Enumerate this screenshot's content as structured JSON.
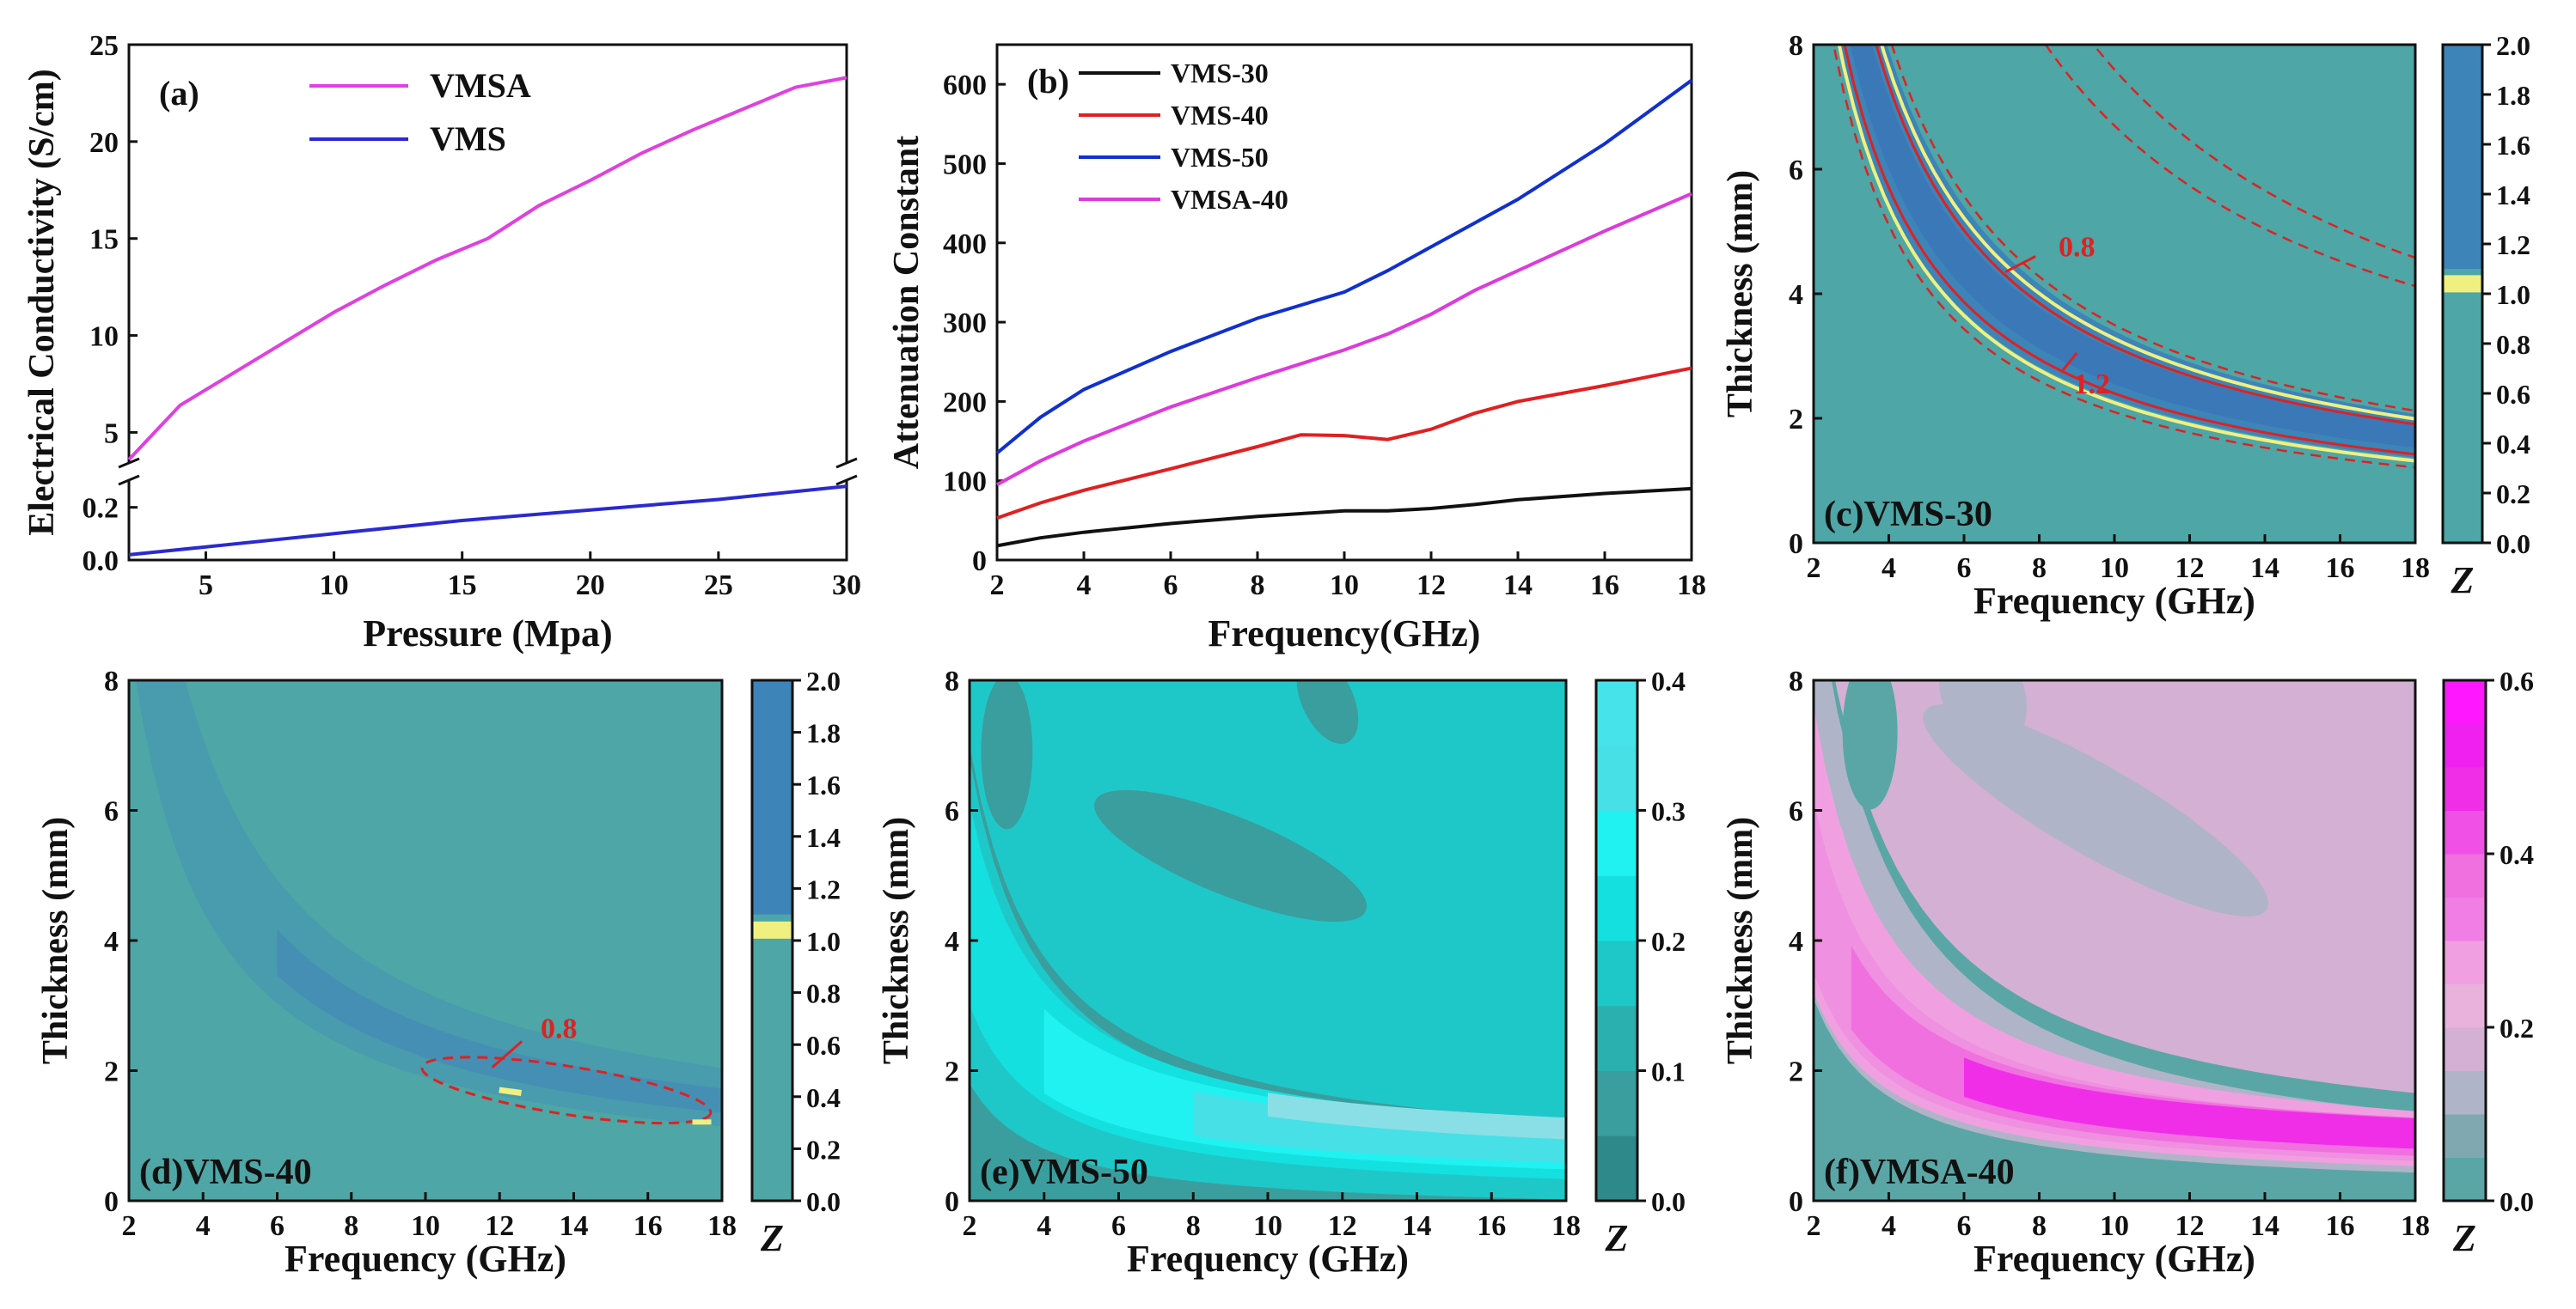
{
  "colors": {
    "vmsa": "#e040e0",
    "vms": "#2a2ad0",
    "vms30": "#111111",
    "vms40": "#e02020",
    "vms50": "#1030d0",
    "vmsa40": "#dd3add",
    "contour_red": "#dd2222",
    "yellow": "#f0f080",
    "z_bg": "#4ea6a6",
    "z_band": "#3d84b8",
    "cyan_bg": "#1fc8c8",
    "cyan_mid": "#15e0e0",
    "cyan_hi": "#20f2f2",
    "cyan_top": "#46e0e6",
    "cyan_dark": "#3a9e9e",
    "cyan_deep": "#2e8a8a",
    "pink_bg": "#d4b0d4",
    "pink_grey": "#b0b4c8",
    "pink_light": "#f0a0e0",
    "pink_mid": "#f070e0",
    "pink_hot": "#f02ee8",
    "pink_teal": "#5aa6a6"
  },
  "chart_data": [
    {
      "id": "a",
      "type": "line",
      "panel_label": "(a)",
      "xlabel": "Pressure (Mpa)",
      "ylabel": "Electrical Conductivity (S/cm)",
      "xlim": [
        2,
        30
      ],
      "xticks": [
        "5",
        "10",
        "15",
        "20",
        "25",
        "30"
      ],
      "yticks_upper": [
        "5",
        "10",
        "15",
        "20",
        "25"
      ],
      "yticks_lower": [
        "0.0",
        "0.2"
      ],
      "axis_break": true,
      "series": [
        {
          "name": "VMSA",
          "segment": "upper",
          "x": [
            2,
            4,
            6,
            8,
            10,
            12,
            14,
            16,
            18,
            20,
            22,
            24,
            26,
            28,
            30
          ],
          "values": [
            3.6,
            6.4,
            8.0,
            9.6,
            11.2,
            12.6,
            13.9,
            15.0,
            16.7,
            18.0,
            19.4,
            20.6,
            21.7,
            22.8,
            23.3
          ]
        },
        {
          "name": "VMS",
          "segment": "lower",
          "x": [
            2,
            5,
            10,
            15,
            20,
            25,
            30
          ],
          "values": [
            0.02,
            0.05,
            0.1,
            0.15,
            0.19,
            0.23,
            0.28
          ]
        }
      ]
    },
    {
      "id": "b",
      "type": "line",
      "panel_label": "(b)",
      "xlabel": "Frequency(GHz)",
      "ylabel": "Attenuation Constant",
      "xlim": [
        2,
        18
      ],
      "ylim": [
        0,
        650
      ],
      "xticks": [
        "2",
        "4",
        "6",
        "8",
        "10",
        "12",
        "14",
        "16",
        "18"
      ],
      "yticks": [
        "0",
        "100",
        "200",
        "300",
        "400",
        "500",
        "600"
      ],
      "series": [
        {
          "name": "VMS-30",
          "x": [
            2,
            3,
            4,
            6,
            8,
            10,
            11,
            12,
            13,
            14,
            16,
            18
          ],
          "values": [
            18,
            28,
            35,
            46,
            55,
            62,
            62,
            65,
            70,
            76,
            84,
            90
          ]
        },
        {
          "name": "VMS-40",
          "x": [
            2,
            3,
            4,
            6,
            8,
            9,
            10,
            11,
            12,
            13,
            14,
            16,
            18
          ],
          "values": [
            53,
            72,
            88,
            115,
            143,
            158,
            157,
            152,
            165,
            185,
            200,
            220,
            242
          ]
        },
        {
          "name": "VMS-50",
          "x": [
            2,
            3,
            4,
            6,
            8,
            10,
            11,
            12,
            13,
            14,
            16,
            18
          ],
          "values": [
            135,
            180,
            215,
            263,
            305,
            338,
            365,
            395,
            425,
            455,
            525,
            605
          ]
        },
        {
          "name": "VMSA-40",
          "x": [
            2,
            3,
            4,
            6,
            8,
            10,
            11,
            12,
            13,
            14,
            16,
            18
          ],
          "values": [
            95,
            125,
            150,
            193,
            230,
            265,
            285,
            310,
            340,
            365,
            415,
            462
          ]
        }
      ]
    },
    {
      "id": "c",
      "type": "heatmap",
      "panel_label": "(c)VMS-30",
      "xlabel": "Frequency (GHz)",
      "ylabel": "Thickness (mm)",
      "xlim": [
        2,
        18
      ],
      "ylim": [
        0,
        8
      ],
      "xticks": [
        "2",
        "4",
        "6",
        "8",
        "10",
        "12",
        "14",
        "16",
        "18"
      ],
      "yticks": [
        "0",
        "2",
        "4",
        "6",
        "8"
      ],
      "colorbar": {
        "label": "Z",
        "range": [
          0,
          2
        ],
        "ticks": [
          "0.0",
          "0.2",
          "0.4",
          "0.6",
          "0.8",
          "1.0",
          "1.2",
          "1.4",
          "1.6",
          "1.8",
          "2.0"
        ]
      },
      "annotations": [
        "0.8",
        "1.2"
      ]
    },
    {
      "id": "d",
      "type": "heatmap",
      "panel_label": "(d)VMS-40",
      "xlabel": "Frequency (GHz)",
      "ylabel": "Thickness (mm)",
      "xlim": [
        2,
        18
      ],
      "ylim": [
        0,
        8
      ],
      "xticks": [
        "2",
        "4",
        "6",
        "8",
        "10",
        "12",
        "14",
        "16",
        "18"
      ],
      "yticks": [
        "0",
        "2",
        "4",
        "6",
        "8"
      ],
      "colorbar": {
        "label": "Z",
        "range": [
          0,
          2
        ],
        "ticks": [
          "0.0",
          "0.2",
          "0.4",
          "0.6",
          "0.8",
          "1.0",
          "1.2",
          "1.4",
          "1.6",
          "1.8",
          "2.0"
        ]
      },
      "annotations": [
        "0.8"
      ]
    },
    {
      "id": "e",
      "type": "heatmap",
      "panel_label": "(e)VMS-50",
      "xlabel": "Frequency (GHz)",
      "ylabel": "Thickness (mm)",
      "xlim": [
        2,
        18
      ],
      "ylim": [
        0,
        8
      ],
      "xticks": [
        "2",
        "4",
        "6",
        "8",
        "10",
        "12",
        "14",
        "16",
        "18"
      ],
      "yticks": [
        "0",
        "2",
        "4",
        "6",
        "8"
      ],
      "colorbar": {
        "label": "Z",
        "range": [
          0,
          0.4
        ],
        "ticks": [
          "0.0",
          "0.1",
          "0.2",
          "0.3",
          "0.4"
        ]
      }
    },
    {
      "id": "f",
      "type": "heatmap",
      "panel_label": "(f)VMSA-40",
      "xlabel": "Frequency (GHz)",
      "ylabel": "Thickness (mm)",
      "xlim": [
        2,
        18
      ],
      "ylim": [
        0,
        8
      ],
      "xticks": [
        "2",
        "4",
        "6",
        "8",
        "10",
        "12",
        "14",
        "16",
        "18"
      ],
      "yticks": [
        "0",
        "2",
        "4",
        "6",
        "8"
      ],
      "colorbar": {
        "label": "Z",
        "range": [
          0,
          0.6
        ],
        "ticks": [
          "0.0",
          "0.2",
          "0.4",
          "0.6"
        ]
      }
    }
  ]
}
